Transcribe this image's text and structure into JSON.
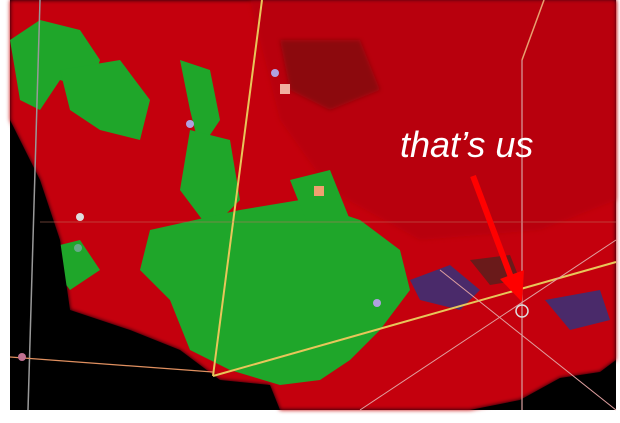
{
  "annotation": {
    "text": "that’s us"
  }
}
